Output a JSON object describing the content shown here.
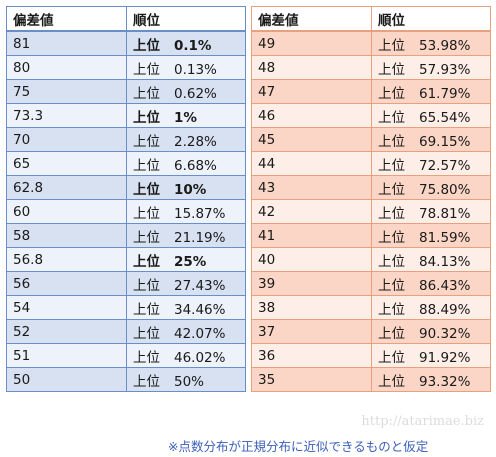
{
  "headers": {
    "deviation": "偏差値",
    "rank": "順位"
  },
  "rank_prefix": "上位",
  "left": [
    {
      "value": "81",
      "percent": "0.1%",
      "bold": true
    },
    {
      "value": "80",
      "percent": "0.13%",
      "bold": false
    },
    {
      "value": "75",
      "percent": "0.62%",
      "bold": false
    },
    {
      "value": "73.3",
      "percent": "1%",
      "bold": true
    },
    {
      "value": "70",
      "percent": "2.28%",
      "bold": false
    },
    {
      "value": "65",
      "percent": "6.68%",
      "bold": false
    },
    {
      "value": "62.8",
      "percent": "10%",
      "bold": true
    },
    {
      "value": "60",
      "percent": "15.87%",
      "bold": false
    },
    {
      "value": "58",
      "percent": "21.19%",
      "bold": false
    },
    {
      "value": "56.8",
      "percent": "25%",
      "bold": true
    },
    {
      "value": "56",
      "percent": "27.43%",
      "bold": false
    },
    {
      "value": "54",
      "percent": "34.46%",
      "bold": false
    },
    {
      "value": "52",
      "percent": "42.07%",
      "bold": false
    },
    {
      "value": "51",
      "percent": "46.02%",
      "bold": false
    },
    {
      "value": "50",
      "percent": "50%",
      "bold": false
    }
  ],
  "right": [
    {
      "value": "49",
      "percent": "53.98%",
      "bold": false
    },
    {
      "value": "48",
      "percent": "57.93%",
      "bold": false
    },
    {
      "value": "47",
      "percent": "61.79%",
      "bold": false
    },
    {
      "value": "46",
      "percent": "65.54%",
      "bold": false
    },
    {
      "value": "45",
      "percent": "69.15%",
      "bold": false
    },
    {
      "value": "44",
      "percent": "72.57%",
      "bold": false
    },
    {
      "value": "43",
      "percent": "75.80%",
      "bold": false
    },
    {
      "value": "42",
      "percent": "78.81%",
      "bold": false
    },
    {
      "value": "41",
      "percent": "81.59%",
      "bold": false
    },
    {
      "value": "40",
      "percent": "84.13%",
      "bold": false
    },
    {
      "value": "39",
      "percent": "86.43%",
      "bold": false
    },
    {
      "value": "38",
      "percent": "88.49%",
      "bold": false
    },
    {
      "value": "37",
      "percent": "90.32%",
      "bold": false
    },
    {
      "value": "36",
      "percent": "91.92%",
      "bold": false
    },
    {
      "value": "35",
      "percent": "93.32%",
      "bold": false
    }
  ],
  "watermark": "http://atarimae.biz",
  "footnote": "※点数分布が正規分布に近似できるものと仮定",
  "colors": {
    "left_border": "#6a8fc8",
    "left_row_dark": "#d7e1f1",
    "left_row_light": "#eef2fa",
    "right_border": "#e8a07e",
    "right_row_dark": "#fbd6c6",
    "right_row_light": "#fdeee8",
    "footnote": "#3a5fb8"
  }
}
